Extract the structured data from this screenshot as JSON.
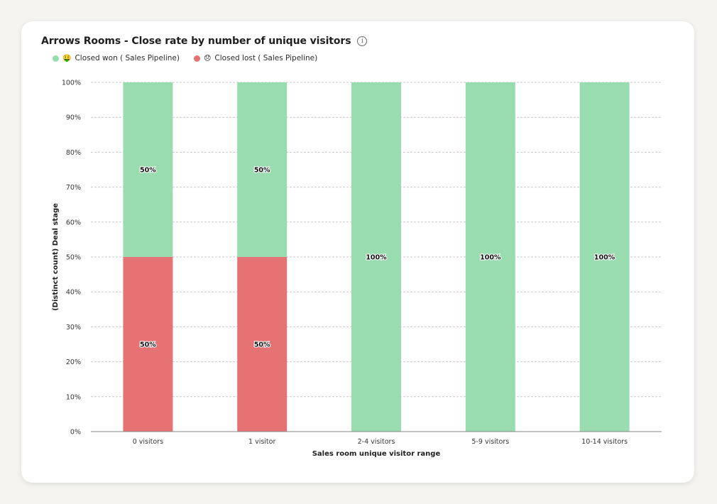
{
  "chart_data": {
    "type": "bar",
    "stacked": true,
    "title": "Arrows Rooms - Close rate by number of unique visitors",
    "xlabel": "Sales room unique visitor range",
    "ylabel": "(Distinct count) Deal stage",
    "categories": [
      "0 visitors",
      "1 visitor",
      "2-4 visitors",
      "5-9 visitors",
      "10-14 visitors"
    ],
    "series": [
      {
        "name": "Closed lost ( Sales Pipeline)",
        "emoji": "😞",
        "color": "#e57373",
        "values": [
          50,
          50,
          0,
          0,
          0
        ],
        "labels": [
          "50%",
          "50%",
          "",
          "",
          ""
        ]
      },
      {
        "name": "Closed won ( Sales Pipeline)",
        "emoji": "🤑",
        "color": "#98dcb0",
        "values": [
          50,
          50,
          100,
          100,
          100
        ],
        "labels": [
          "50%",
          "50%",
          "100%",
          "100%",
          "100%"
        ]
      }
    ],
    "ylim": [
      0,
      100
    ],
    "yticks": [
      "0%",
      "10%",
      "20%",
      "30%",
      "40%",
      "50%",
      "60%",
      "70%",
      "80%",
      "90%",
      "100%"
    ],
    "grid": true,
    "legend_position": "top-left"
  },
  "info_icon": "info-icon"
}
